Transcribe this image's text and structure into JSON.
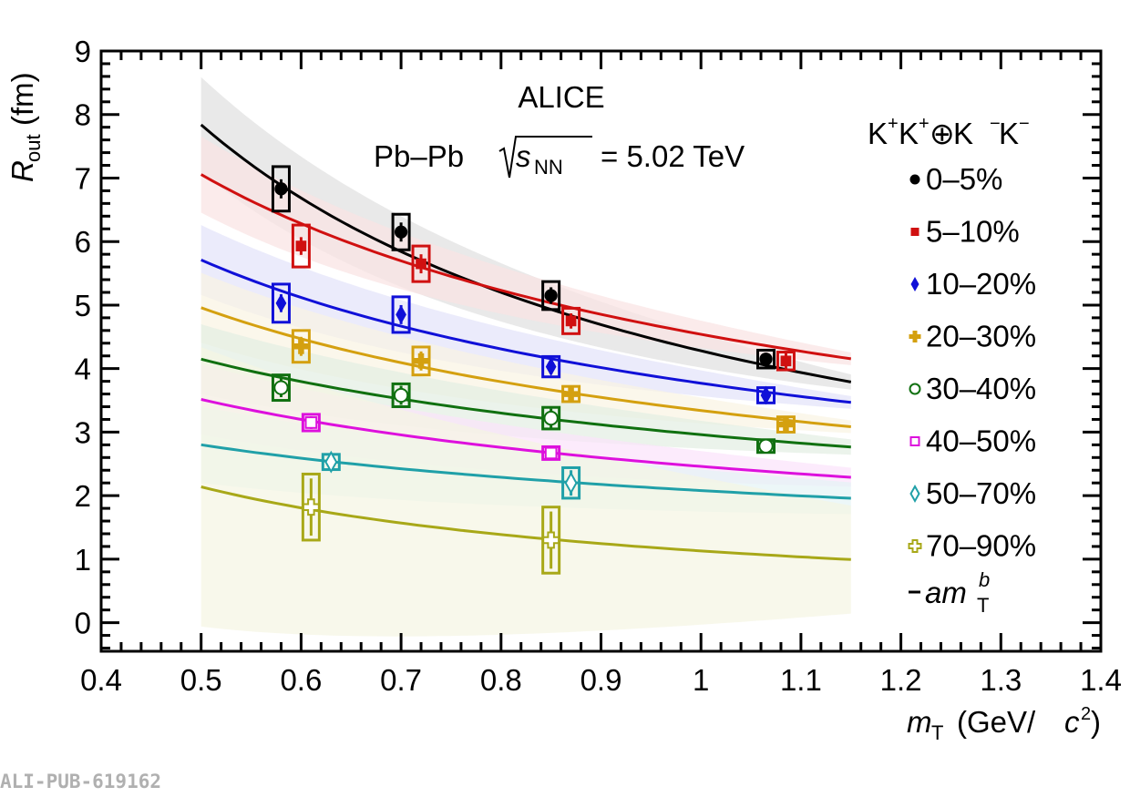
{
  "watermark": "ALI-PUB-619162",
  "chart_data": {
    "type": "scatter",
    "title": "ALICE",
    "subtitle": {
      "system": "Pb–Pb",
      "energy_symbol": "s",
      "energy_subscript": "NN",
      "energy_value": "= 5.02 TeV"
    },
    "xlabel": {
      "symbol": "m",
      "subscript": "T",
      "unit": "(GeV/",
      "unit_c": "c",
      "unit_sup": "2",
      "unit_close": ")"
    },
    "ylabel": {
      "symbol": "R",
      "subscript": "out",
      "unit": "(fm)"
    },
    "xlim": [
      0.4,
      1.4
    ],
    "ylim": [
      -0.45,
      9
    ],
    "xticks": [
      "0.4",
      "0.5",
      "0.6",
      "0.7",
      "0.8",
      "0.9",
      "1",
      "1.1",
      "1.2",
      "1.3",
      "1.4"
    ],
    "yticks": [
      "0",
      "1",
      "2",
      "3",
      "4",
      "5",
      "6",
      "7",
      "8",
      "9"
    ],
    "grid": false,
    "legend": {
      "placement": "right",
      "header": {
        "k1": "K",
        "s1": "+",
        "k2": "K",
        "s2": "+",
        "oplus": "⊕",
        "k3": " K",
        "s3": "−",
        "k4": "K",
        "s4": "−"
      },
      "fit_label": {
        "a": "am",
        "sub": "T",
        "sup": "b"
      }
    },
    "series": [
      {
        "name": "0–5%",
        "color": "#000000",
        "marker": "circle-filled",
        "points": [
          {
            "x": 0.58,
            "y": 6.83,
            "stat": 0.15,
            "sys": 0.35
          },
          {
            "x": 0.7,
            "y": 6.15,
            "stat": 0.15,
            "sys": 0.28
          },
          {
            "x": 0.85,
            "y": 5.15,
            "stat": 0.13,
            "sys": 0.22
          },
          {
            "x": 1.065,
            "y": 4.15,
            "stat": 0.1,
            "sys": 0.14
          }
        ],
        "fit": {
          "a": 4.28,
          "b": -0.873
        },
        "band": [
          0.75,
          0.12
        ]
      },
      {
        "name": "5–10%",
        "color": "#d01010",
        "marker": "square-filled",
        "points": [
          {
            "x": 0.6,
            "y": 5.93,
            "stat": 0.14,
            "sys": 0.33
          },
          {
            "x": 0.72,
            "y": 5.65,
            "stat": 0.15,
            "sys": 0.28
          },
          {
            "x": 0.87,
            "y": 4.75,
            "stat": 0.12,
            "sys": 0.2
          },
          {
            "x": 1.085,
            "y": 4.12,
            "stat": 0.12,
            "sys": 0.14
          }
        ],
        "fit": {
          "a": 4.54,
          "b": -0.636
        },
        "band": [
          0.6,
          0.1
        ]
      },
      {
        "name": "10–20%",
        "color": "#1010d8",
        "marker": "diamond-filled",
        "points": [
          {
            "x": 0.58,
            "y": 5.03,
            "stat": 0.14,
            "sys": 0.3
          },
          {
            "x": 0.7,
            "y": 4.85,
            "stat": 0.15,
            "sys": 0.28
          },
          {
            "x": 0.85,
            "y": 4.03,
            "stat": 0.12,
            "sys": 0.16
          },
          {
            "x": 1.065,
            "y": 3.58,
            "stat": 0.1,
            "sys": 0.12
          }
        ],
        "fit": {
          "a": 3.77,
          "b": -0.599
        },
        "band": [
          0.55,
          0.1
        ]
      },
      {
        "name": "20–30%",
        "color": "#d4a010",
        "marker": "cross-filled",
        "points": [
          {
            "x": 0.6,
            "y": 4.35,
            "stat": 0.15,
            "sys": 0.25
          },
          {
            "x": 0.72,
            "y": 4.12,
            "stat": 0.15,
            "sys": 0.22
          },
          {
            "x": 0.87,
            "y": 3.6,
            "stat": 0.1,
            "sys": 0.12
          },
          {
            "x": 1.085,
            "y": 3.12,
            "stat": 0.08,
            "sys": 0.12
          }
        ],
        "fit": {
          "a": 3.34,
          "b": -0.57
        },
        "band": [
          0.55,
          0.1
        ]
      },
      {
        "name": "30–40%",
        "color": "#107010",
        "marker": "circle-open",
        "points": [
          {
            "x": 0.58,
            "y": 3.7,
            "stat": 0.15,
            "sys": 0.2
          },
          {
            "x": 0.7,
            "y": 3.58,
            "stat": 0.15,
            "sys": 0.18
          },
          {
            "x": 0.85,
            "y": 3.22,
            "stat": 0.15,
            "sys": 0.17
          },
          {
            "x": 1.065,
            "y": 2.78,
            "stat": 0.08,
            "sys": 0.1
          }
        ],
        "fit": {
          "a": 2.96,
          "b": -0.487
        },
        "band": [
          0.55,
          0.12
        ]
      },
      {
        "name": "40–50%",
        "color": "#dd10dd",
        "marker": "square-open",
        "points": [
          {
            "x": 0.61,
            "y": 3.15,
            "stat": 0.1,
            "sys": 0.13
          },
          {
            "x": 0.85,
            "y": 2.67,
            "stat": 0.1,
            "sys": 0.1
          }
        ],
        "fit": {
          "a": 2.46,
          "b": -0.515
        },
        "band": [
          0.55,
          0.15
        ]
      },
      {
        "name": "50–70%",
        "color": "#20a0a8",
        "marker": "diamond-open",
        "points": [
          {
            "x": 0.63,
            "y": 2.53,
            "stat": 0.1,
            "sys": 0.12
          },
          {
            "x": 0.87,
            "y": 2.2,
            "stat": 0.2,
            "sys": 0.24
          }
        ],
        "fit": {
          "a": 2.08,
          "b": -0.429
        },
        "band": [
          0.6,
          0.25
        ]
      },
      {
        "name": "70–90%",
        "color": "#a8a818",
        "marker": "cross-open",
        "points": [
          {
            "x": 0.61,
            "y": 1.82,
            "stat": 0.45,
            "sys": 0.52
          },
          {
            "x": 0.85,
            "y": 1.3,
            "stat": 0.45,
            "sys": 0.52
          }
        ],
        "fit": {
          "a": 1.13,
          "b": -0.92
        },
        "band": [
          2.2,
          0.85
        ]
      }
    ],
    "fit_range": [
      0.5,
      1.15
    ]
  }
}
